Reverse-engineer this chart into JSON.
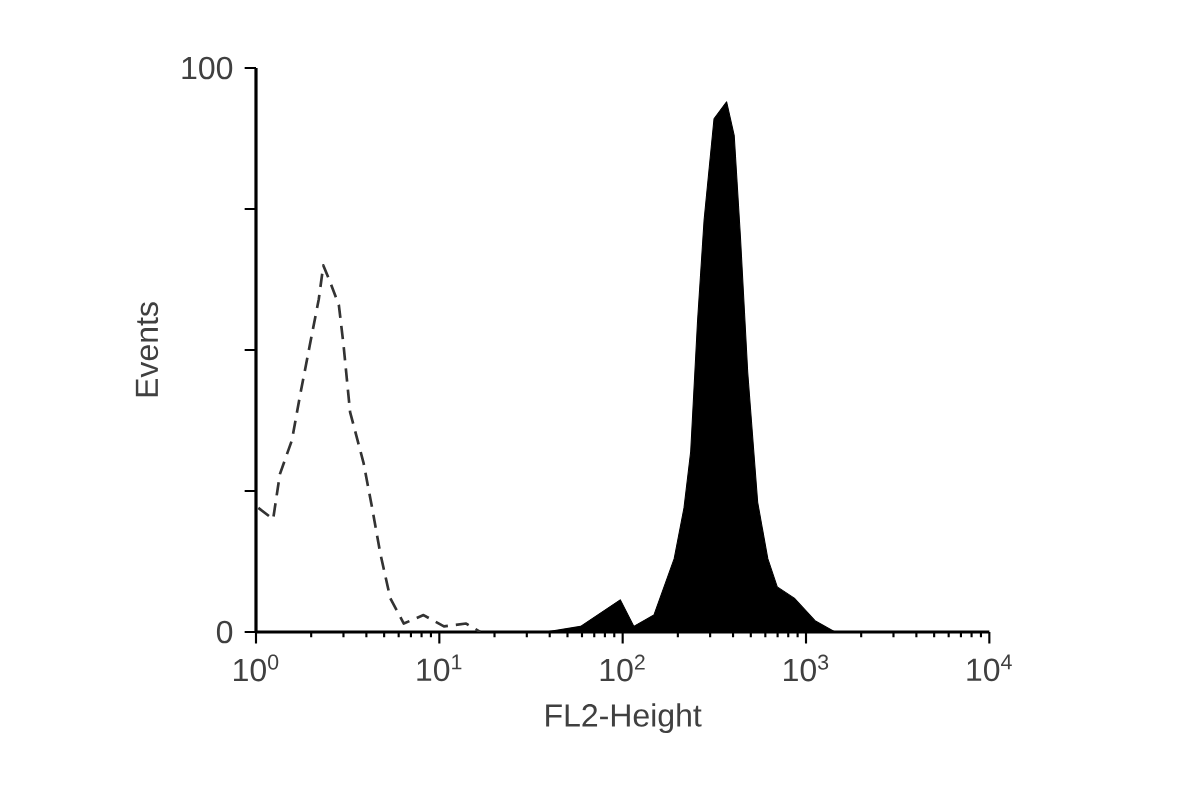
{
  "chart_data": {
    "type": "line",
    "xlabel": "FL2-Height",
    "ylabel": "Events",
    "log": "x",
    "xlim": [
      1,
      10000
    ],
    "ylim": [
      0,
      100
    ],
    "xticks": [
      {
        "value": 1,
        "label": "10$^{0}$"
      },
      {
        "value": 10,
        "label": "10$^{1}$"
      },
      {
        "value": 100,
        "label": "10$^{2}$"
      },
      {
        "value": 1000,
        "label": "10$^{3}$"
      },
      {
        "value": 10000,
        "label": "10$^{4}$"
      }
    ],
    "yticks": [
      0,
      {
        "value": 25,
        "label": null
      },
      {
        "value": 50,
        "label": null
      },
      {
        "value": 75,
        "label": null
      },
      100
    ],
    "marker": "none",
    "series": [
      {
        "line_style": "dashed",
        "color": "#333333",
        "x": [
          1.03,
          1.24,
          1.35,
          1.57,
          1.74,
          1.97,
          2.2,
          2.33,
          2.54,
          2.83,
          3.0,
          3.26,
          3.86,
          4.3,
          4.76,
          5.4,
          6.4,
          8.2,
          10.6,
          14,
          16.7
        ],
        "values": [
          22,
          20,
          28,
          34,
          42,
          51,
          59,
          65,
          62,
          58,
          51,
          39,
          30,
          22,
          14,
          6,
          1.5,
          3,
          1,
          1.5,
          0
        ]
      },
      {
        "type": "area",
        "color": "#000000",
        "x": [
          38,
          59,
          97,
          115,
          148,
          191,
          216,
          235,
          256,
          278,
          315,
          369,
          406,
          439,
          481,
          545,
          619,
          697,
          863,
          1120,
          1440
        ],
        "values": [
          0,
          1,
          5.7,
          1,
          3,
          13,
          22,
          32,
          55,
          73,
          91,
          94,
          88,
          70,
          46,
          23,
          13,
          8,
          6,
          2,
          0
        ]
      }
    ]
  }
}
